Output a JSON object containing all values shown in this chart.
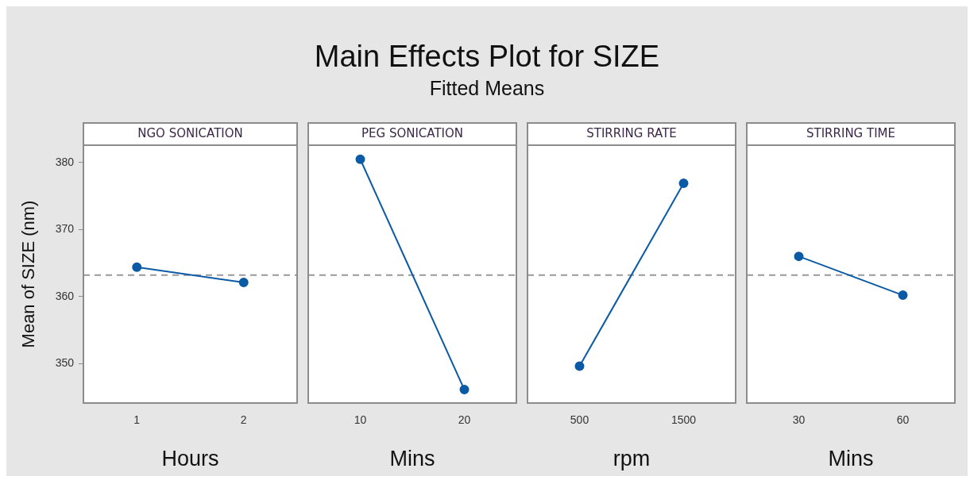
{
  "chart_data": [
    {
      "type": "line",
      "title": "NGO SONICATION",
      "annotations": [
        "Main Effects Plot for SIZE",
        "Fitted Means"
      ],
      "xlabel": "Hours",
      "ylabel": "Mean of SIZE (nm)",
      "categories": [
        "1",
        "2"
      ],
      "series": [
        {
          "color": "#0a5aa5",
          "values": [
            364.4,
            362.1
          ]
        }
      ],
      "ylim": [
        344.1,
        382.6
      ],
      "yticks": [
        350,
        360,
        370,
        380
      ],
      "ref_lines": [
        {
          "axis": "y",
          "value": 363.2,
          "line_style": "dashed",
          "color": "#999999"
        }
      ],
      "marker": "circle",
      "line_style": "solid",
      "legend": false,
      "grid": false
    },
    {
      "type": "line",
      "title": "PEG SONICATION",
      "xlabel": "Mins",
      "categories": [
        "10",
        "20"
      ],
      "series": [
        {
          "color": "#0a5aa5",
          "values": [
            380.5,
            346.1
          ]
        }
      ],
      "ylim": [
        344.1,
        382.6
      ],
      "yticks": [
        350,
        360,
        370,
        380
      ],
      "tick_labels": "x",
      "ref_lines": [
        {
          "axis": "y",
          "value": 363.2,
          "line_style": "dashed",
          "color": "#999999"
        }
      ],
      "marker": "circle",
      "line_style": "solid",
      "legend": false,
      "grid": false
    },
    {
      "type": "line",
      "title": "STIRRING RATE",
      "xlabel": "rpm",
      "categories": [
        "500",
        "1500"
      ],
      "series": [
        {
          "color": "#0a5aa5",
          "values": [
            349.6,
            376.9
          ]
        }
      ],
      "ylim": [
        344.1,
        382.6
      ],
      "yticks": [
        350,
        360,
        370,
        380
      ],
      "tick_labels": "x",
      "ref_lines": [
        {
          "axis": "y",
          "value": 363.2,
          "line_style": "dashed",
          "color": "#999999"
        }
      ],
      "marker": "circle",
      "line_style": "solid",
      "legend": false,
      "grid": false
    },
    {
      "type": "line",
      "title": "STIRRING TIME",
      "xlabel": "Mins",
      "categories": [
        "30",
        "60"
      ],
      "series": [
        {
          "color": "#0a5aa5",
          "values": [
            366.0,
            360.2
          ]
        }
      ],
      "ylim": [
        344.1,
        382.6
      ],
      "yticks": [
        350,
        360,
        370,
        380
      ],
      "tick_labels": "x",
      "ref_lines": [
        {
          "axis": "y",
          "value": 363.2,
          "line_style": "dashed",
          "color": "#999999"
        }
      ],
      "marker": "circle",
      "line_style": "solid",
      "legend": false,
      "grid": false
    }
  ]
}
